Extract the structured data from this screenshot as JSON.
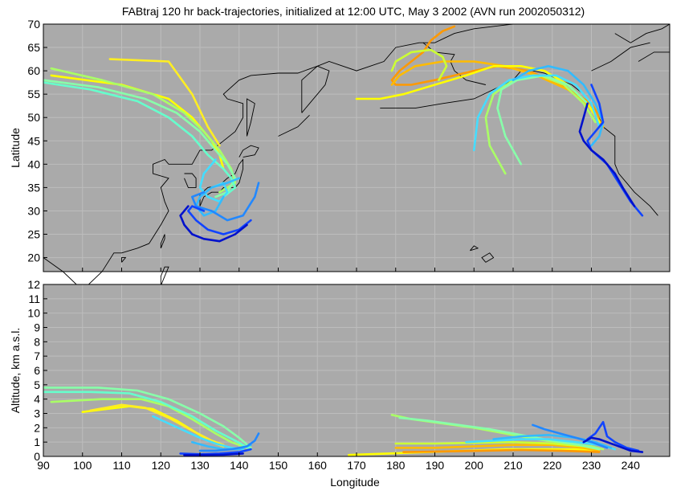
{
  "chart_data": [
    {
      "type": "line",
      "title": "FABtraj 120 hr back-trajectories, initialized at 12:00 UTC, May 3 2002 (AVN run 2002050312)",
      "xlabel": "",
      "ylabel": "Latitude",
      "xlim": [
        90,
        250
      ],
      "ylim": [
        17,
        70
      ],
      "xticks": [
        90,
        100,
        110,
        120,
        130,
        140,
        150,
        160,
        170,
        180,
        190,
        200,
        210,
        220,
        230,
        240
      ],
      "yticks": [
        20,
        25,
        30,
        35,
        40,
        45,
        50,
        55,
        60,
        65,
        70
      ],
      "grid": true,
      "background": "#aaaaaa",
      "coastlines": "black outline of East Asia, Kamchatka, Alaska and west coast of North America",
      "series": [
        {
          "color": "#ffff00",
          "x": [
            92,
            110,
            122,
            128,
            133,
            135,
            136
          ],
          "y": [
            59,
            57,
            54,
            50,
            45,
            42,
            39
          ]
        },
        {
          "color": "#ffee22",
          "x": [
            107,
            122,
            128,
            132,
            135
          ],
          "y": [
            62.5,
            62,
            55,
            48,
            44
          ]
        },
        {
          "color": "#aaff66",
          "x": [
            92,
            105,
            118,
            126,
            131,
            135,
            138,
            139,
            135
          ],
          "y": [
            60.5,
            58,
            55,
            51,
            47,
            43,
            39,
            36,
            34
          ]
        },
        {
          "color": "#88ffaa",
          "x": [
            90,
            104,
            116,
            124,
            130,
            134,
            137,
            139,
            137,
            134
          ],
          "y": [
            58,
            56.5,
            54,
            51,
            47,
            43,
            40,
            37,
            34,
            33
          ]
        },
        {
          "color": "#66ffcc",
          "x": [
            90,
            102,
            114,
            122,
            128,
            132,
            136,
            138,
            139,
            136
          ],
          "y": [
            57.5,
            56,
            53.5,
            50,
            46,
            42,
            39,
            37,
            35,
            33
          ]
        },
        {
          "color": "#44ddff",
          "x": [
            134,
            131,
            130,
            132,
            135,
            137,
            136,
            133
          ],
          "y": [
            41,
            38,
            35,
            33,
            32,
            34,
            36,
            35
          ]
        },
        {
          "color": "#33bbff",
          "x": [
            140,
            137,
            133,
            130,
            129,
            131,
            134,
            136
          ],
          "y": [
            37,
            36,
            35,
            33,
            31,
            29,
            30,
            33
          ]
        },
        {
          "color": "#2288ff",
          "x": [
            145,
            144,
            141,
            137,
            133,
            129,
            128,
            131
          ],
          "y": [
            36,
            33,
            29,
            28,
            30,
            31,
            33,
            34
          ]
        },
        {
          "color": "#1144ff",
          "x": [
            143,
            140,
            136,
            132,
            129,
            127,
            128,
            131
          ],
          "y": [
            28,
            26,
            25,
            26,
            28,
            30,
            31,
            30
          ]
        },
        {
          "color": "#0011cc",
          "x": [
            142,
            139,
            135,
            131,
            128,
            126,
            125,
            127
          ],
          "y": [
            27,
            25,
            23.5,
            24,
            25,
            27,
            29,
            31
          ]
        },
        {
          "color": "#ff9900",
          "x": [
            195,
            192,
            189,
            187,
            184,
            181,
            179,
            180,
            184,
            190,
            195,
            200,
            206,
            214,
            222,
            230,
            233
          ],
          "y": [
            69.5,
            68.5,
            66.5,
            64,
            62,
            60,
            58,
            57,
            57,
            58,
            59,
            60,
            61,
            60,
            57,
            53,
            49
          ]
        },
        {
          "color": "#ffbb00",
          "x": [
            179,
            181,
            185,
            192,
            200,
            208,
            216,
            224,
            230,
            233
          ],
          "y": [
            57,
            59,
            61,
            62,
            62,
            61,
            59,
            56,
            52,
            48
          ]
        },
        {
          "color": "#ffff00",
          "x": [
            170,
            176,
            182,
            190,
            198,
            205,
            212,
            218,
            224,
            229,
            232
          ],
          "y": [
            54,
            54,
            55,
            57,
            59,
            61,
            61,
            60,
            57,
            53,
            49
          ]
        },
        {
          "color": "#ccff33",
          "x": [
            179,
            180,
            184,
            189,
            192,
            193,
            191
          ],
          "y": [
            60,
            62,
            64,
            64.5,
            63,
            61,
            58
          ]
        },
        {
          "color": "#aaff66",
          "x": [
            208,
            204,
            203,
            205,
            210,
            217,
            223,
            228,
            231
          ],
          "y": [
            38,
            44,
            50,
            55,
            58,
            59,
            57,
            53,
            49
          ]
        },
        {
          "color": "#88ffaa",
          "x": [
            212,
            208,
            206,
            207,
            211,
            218,
            224,
            229
          ],
          "y": [
            40,
            46,
            52,
            56,
            58,
            59,
            57,
            53
          ]
        },
        {
          "color": "#44ddff",
          "x": [
            200,
            201,
            204,
            209,
            215,
            221,
            226,
            230,
            232
          ],
          "y": [
            43,
            50,
            55,
            58,
            59,
            59,
            57,
            53,
            48
          ]
        },
        {
          "color": "#33bbff",
          "x": [
            210,
            214,
            219,
            224,
            228,
            231,
            233,
            232,
            230
          ],
          "y": [
            58,
            60,
            61,
            60,
            57,
            53,
            49,
            46,
            44
          ]
        },
        {
          "color": "#1144ff",
          "x": [
            230,
            232,
            233,
            231,
            229,
            230,
            234,
            237,
            240,
            243
          ],
          "y": [
            57,
            53,
            49,
            47,
            45,
            43,
            40,
            36,
            32,
            29
          ]
        },
        {
          "color": "#0011cc",
          "x": [
            229,
            228,
            227,
            228,
            230,
            233,
            236,
            238,
            241
          ],
          "y": [
            53,
            50,
            47,
            45,
            43,
            41,
            38,
            35,
            31
          ]
        }
      ]
    },
    {
      "type": "line",
      "title": "",
      "xlabel": "Longitude",
      "ylabel": "Altitude, km a.s.l.",
      "xlim": [
        90,
        250
      ],
      "ylim": [
        0,
        12
      ],
      "xticks": [
        90,
        100,
        110,
        120,
        130,
        140,
        150,
        160,
        170,
        180,
        190,
        200,
        210,
        220,
        230,
        240
      ],
      "yticks": [
        0,
        1,
        2,
        3,
        4,
        5,
        6,
        7,
        8,
        9,
        10,
        11,
        12
      ],
      "grid": true,
      "background": "#aaaaaa",
      "series": [
        {
          "color": "#ffff00",
          "x": [
            100,
            106,
            112,
            118,
            124,
            130,
            134,
            136
          ],
          "y": [
            3.1,
            3.3,
            3.5,
            3.3,
            2.5,
            1.5,
            0.9,
            0.7
          ]
        },
        {
          "color": "#ffee22",
          "x": [
            102,
            110,
            116,
            122,
            128,
            133,
            136
          ],
          "y": [
            3.2,
            3.6,
            3.4,
            2.7,
            1.8,
            1.1,
            0.8
          ]
        },
        {
          "color": "#aaff66",
          "x": [
            92,
            105,
            115,
            122,
            128,
            134,
            138,
            142
          ],
          "y": [
            3.8,
            4.0,
            4.0,
            3.5,
            2.6,
            1.6,
            1.0,
            0.6
          ]
        },
        {
          "color": "#88ffaa",
          "x": [
            90,
            104,
            114,
            122,
            130,
            136,
            140,
            143
          ],
          "y": [
            4.8,
            4.8,
            4.6,
            4.0,
            3.0,
            2.1,
            1.3,
            0.6
          ]
        },
        {
          "color": "#66ffcc",
          "x": [
            90,
            102,
            112,
            120,
            128,
            134,
            139,
            143
          ],
          "y": [
            4.5,
            4.5,
            4.4,
            3.8,
            2.8,
            1.8,
            1.1,
            0.5
          ]
        },
        {
          "color": "#44ddff",
          "x": [
            118,
            122,
            126,
            130,
            134,
            138,
            141
          ],
          "y": [
            2.8,
            2.3,
            1.8,
            1.3,
            0.9,
            0.6,
            0.5
          ]
        },
        {
          "color": "#33bbff",
          "x": [
            128,
            132,
            136,
            140,
            143
          ],
          "y": [
            1.0,
            0.7,
            0.5,
            0.5,
            0.8
          ]
        },
        {
          "color": "#2288ff",
          "x": [
            130,
            134,
            138,
            142,
            144,
            145
          ],
          "y": [
            0.4,
            0.4,
            0.5,
            0.7,
            1.1,
            1.6
          ]
        },
        {
          "color": "#1144ff",
          "x": [
            125,
            130,
            135,
            140,
            143
          ],
          "y": [
            0.2,
            0.15,
            0.2,
            0.3,
            0.5
          ]
        },
        {
          "color": "#0011cc",
          "x": [
            126,
            131,
            136,
            141
          ],
          "y": [
            0.1,
            0.1,
            0.12,
            0.2
          ]
        },
        {
          "color": "#ffff00",
          "x": [
            168,
            178,
            188,
            198,
            208,
            218,
            226,
            231
          ],
          "y": [
            0.1,
            0.2,
            0.3,
            0.4,
            0.5,
            0.5,
            0.5,
            0.4
          ]
        },
        {
          "color": "#ffbb00",
          "x": [
            180,
            190,
            200,
            210,
            220,
            228,
            232
          ],
          "y": [
            0.6,
            0.6,
            0.7,
            0.8,
            0.8,
            0.6,
            0.4
          ]
        },
        {
          "color": "#ff9900",
          "x": [
            182,
            192,
            202,
            212,
            222,
            228,
            232
          ],
          "y": [
            0.3,
            0.35,
            0.4,
            0.45,
            0.4,
            0.35,
            0.3
          ]
        },
        {
          "color": "#ccff33",
          "x": [
            180,
            190,
            200,
            210,
            220,
            228,
            232
          ],
          "y": [
            0.9,
            0.9,
            0.95,
            1.0,
            0.9,
            0.7,
            0.5
          ]
        },
        {
          "color": "#aaff66",
          "x": [
            179,
            184,
            192,
            200,
            208,
            216,
            224,
            230,
            233
          ],
          "y": [
            2.9,
            2.6,
            2.3,
            2.0,
            1.6,
            1.2,
            0.9,
            0.7,
            0.5
          ]
        },
        {
          "color": "#88ffaa",
          "x": [
            181,
            188,
            196,
            204,
            212,
            220,
            227,
            232
          ],
          "y": [
            2.7,
            2.5,
            2.2,
            1.9,
            1.5,
            1.1,
            0.8,
            0.5
          ]
        },
        {
          "color": "#44ddff",
          "x": [
            198,
            205,
            212,
            219,
            226,
            232,
            236
          ],
          "y": [
            1.0,
            1.1,
            1.2,
            1.2,
            1.0,
            0.8,
            0.5
          ]
        },
        {
          "color": "#33bbff",
          "x": [
            205,
            212,
            219,
            226,
            231,
            235
          ],
          "y": [
            1.2,
            1.4,
            1.5,
            1.3,
            1.0,
            0.6
          ]
        },
        {
          "color": "#2288ff",
          "x": [
            215,
            218,
            222,
            226,
            230,
            234
          ],
          "y": [
            2.2,
            1.9,
            1.6,
            1.3,
            1.0,
            0.6
          ]
        },
        {
          "color": "#1144ff",
          "x": [
            229,
            231,
            233,
            234,
            236,
            239,
            242
          ],
          "y": [
            1.2,
            1.6,
            2.4,
            1.4,
            1.0,
            0.6,
            0.4
          ]
        },
        {
          "color": "#0011cc",
          "x": [
            228,
            230,
            232,
            234,
            236,
            238,
            240,
            243
          ],
          "y": [
            1.0,
            1.3,
            1.2,
            1.0,
            0.8,
            0.6,
            0.4,
            0.3
          ]
        }
      ]
    }
  ]
}
